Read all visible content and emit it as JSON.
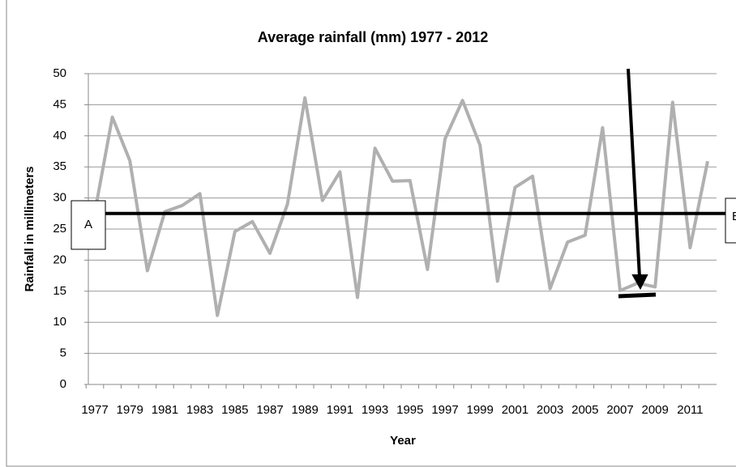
{
  "chart_data": {
    "type": "line",
    "title": "Average rainfall (mm) 1977 - 2012",
    "x_label": "Year",
    "y_label": "Rainfall in millimeters",
    "categories": [
      "1977",
      null,
      "1979",
      null,
      "1981",
      null,
      "1983",
      null,
      "1985",
      null,
      "1987",
      null,
      "1989",
      null,
      "1991",
      null,
      "1993",
      null,
      "1995",
      null,
      "1997",
      null,
      "1999",
      null,
      "2001",
      null,
      "2003",
      null,
      "2005",
      null,
      "2007",
      null,
      "2009",
      null,
      "2011",
      null
    ],
    "series": [
      {
        "name": "Average rainfall",
        "color": "#b0b0b0",
        "values": [
          27.7,
          43,
          36,
          18.3,
          27.8,
          28.8,
          30.7,
          11.1,
          24.6,
          26.2,
          21.1,
          29,
          46.1,
          29.6,
          34.2,
          14,
          38,
          32.7,
          32.8,
          18.5,
          39.5,
          45.7,
          38.5,
          16.6,
          31.7,
          33.5,
          15.4,
          22.9,
          24,
          41.3,
          15.1,
          16.3,
          15.7,
          45.4,
          22,
          35.9
        ]
      }
    ],
    "ylim": [
      0,
      50
    ],
    "yticks": [
      0,
      5,
      10,
      15,
      20,
      25,
      30,
      35,
      40,
      45,
      50
    ],
    "grid": true,
    "reference_line": {
      "value": 27.5,
      "label_left": "A",
      "label_right": "B"
    }
  }
}
